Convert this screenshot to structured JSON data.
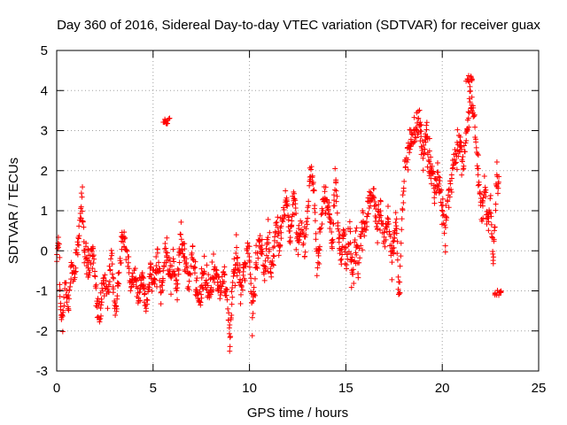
{
  "chart_data": {
    "type": "scatter",
    "title": "Day 360 of 2016, Sidereal Day-to-day VTEC variation (SDTVAR) for receiver guax",
    "xlabel": "GPS time / hours",
    "ylabel": "SDTVAR / TECUs",
    "xlim": [
      0,
      25
    ],
    "ylim": [
      -3,
      5
    ],
    "x_ticks": [
      0,
      5,
      10,
      15,
      20,
      25
    ],
    "y_ticks": [
      -3,
      -2,
      -1,
      0,
      1,
      2,
      3,
      4,
      5
    ],
    "grid": true,
    "marker": "+",
    "series_color": "#ff0000",
    "trend": [
      [
        0.0,
        -0.2
      ],
      [
        0.1,
        0.3
      ],
      [
        0.2,
        -1.2
      ],
      [
        0.3,
        -1.8
      ],
      [
        0.45,
        -0.8
      ],
      [
        0.6,
        -1.5
      ],
      [
        0.75,
        -0.4
      ],
      [
        0.9,
        -0.8
      ],
      [
        1.05,
        -0.1
      ],
      [
        1.2,
        0.6
      ],
      [
        1.3,
        1.1
      ],
      [
        1.4,
        0.5
      ],
      [
        1.5,
        -0.1
      ],
      [
        1.7,
        -0.4
      ],
      [
        1.9,
        0.1
      ],
      [
        2.05,
        -1.1
      ],
      [
        2.25,
        -1.7
      ],
      [
        2.45,
        -0.6
      ],
      [
        2.65,
        -1.2
      ],
      [
        2.85,
        -0.1
      ],
      [
        3.05,
        -1.5
      ],
      [
        3.25,
        -0.5
      ],
      [
        3.45,
        0.4
      ],
      [
        3.65,
        -0.2
      ],
      [
        3.85,
        -0.9
      ],
      [
        4.05,
        -0.5
      ],
      [
        4.25,
        -1.3
      ],
      [
        4.45,
        -0.6
      ],
      [
        4.65,
        -1.6
      ],
      [
        4.85,
        -0.4
      ],
      [
        5.05,
        -0.9
      ],
      [
        5.25,
        -0.2
      ],
      [
        5.45,
        -1.0
      ],
      [
        5.65,
        0.1
      ],
      [
        5.85,
        -0.6
      ],
      [
        6.05,
        -0.3
      ],
      [
        6.25,
        -0.9
      ],
      [
        6.45,
        0.5
      ],
      [
        6.65,
        -0.3
      ],
      [
        6.85,
        -0.8
      ],
      [
        7.05,
        -0.1
      ],
      [
        7.25,
        -0.9
      ],
      [
        7.45,
        -1.1
      ],
      [
        7.65,
        -0.6
      ],
      [
        7.85,
        -1.0
      ],
      [
        8.05,
        -0.8
      ],
      [
        8.25,
        -0.6
      ],
      [
        8.45,
        -1.0
      ],
      [
        8.65,
        -0.7
      ],
      [
        8.85,
        -1.2
      ],
      [
        9.0,
        -2.2
      ],
      [
        9.15,
        -0.5
      ],
      [
        9.35,
        -0.1
      ],
      [
        9.55,
        -1.0
      ],
      [
        9.75,
        -0.4
      ],
      [
        9.95,
        0.1
      ],
      [
        10.15,
        -1.6
      ],
      [
        10.35,
        -0.4
      ],
      [
        10.55,
        0.4
      ],
      [
        10.75,
        -0.4
      ],
      [
        10.95,
        0.1
      ],
      [
        11.15,
        -0.5
      ],
      [
        11.35,
        0.6
      ],
      [
        11.55,
        0.2
      ],
      [
        11.75,
        0.9
      ],
      [
        11.95,
        1.1
      ],
      [
        12.1,
        0.3
      ],
      [
        12.3,
        1.3
      ],
      [
        12.5,
        0.3
      ],
      [
        12.7,
        0.6
      ],
      [
        12.9,
        0.0
      ],
      [
        13.05,
        1.2
      ],
      [
        13.2,
        2.0
      ],
      [
        13.35,
        1.5
      ],
      [
        13.5,
        -0.4
      ],
      [
        13.7,
        0.7
      ],
      [
        13.9,
        1.5
      ],
      [
        14.1,
        1.2
      ],
      [
        14.3,
        0.2
      ],
      [
        14.45,
        1.8
      ],
      [
        14.6,
        0.6
      ],
      [
        14.75,
        -0.3
      ],
      [
        14.9,
        0.6
      ],
      [
        15.05,
        -0.4
      ],
      [
        15.2,
        0.4
      ],
      [
        15.35,
        -0.6
      ],
      [
        15.5,
        0.3
      ],
      [
        15.65,
        -0.5
      ],
      [
        15.8,
        0.7
      ],
      [
        16.0,
        0.6
      ],
      [
        16.2,
        1.2
      ],
      [
        16.4,
        1.6
      ],
      [
        16.6,
        0.7
      ],
      [
        16.8,
        1.2
      ],
      [
        17.0,
        0.2
      ],
      [
        17.2,
        0.8
      ],
      [
        17.4,
        -0.2
      ],
      [
        17.6,
        0.9
      ],
      [
        17.75,
        -1.3
      ],
      [
        17.9,
        0.9
      ],
      [
        18.05,
        2.0
      ],
      [
        18.2,
        2.5
      ],
      [
        18.4,
        2.7
      ],
      [
        18.6,
        2.9
      ],
      [
        18.8,
        3.1
      ],
      [
        19.0,
        2.5
      ],
      [
        19.2,
        2.8
      ],
      [
        19.4,
        2.0
      ],
      [
        19.6,
        1.6
      ],
      [
        19.8,
        1.8
      ],
      [
        20.0,
        1.2
      ],
      [
        20.15,
        0.3
      ],
      [
        20.3,
        1.3
      ],
      [
        20.5,
        1.9
      ],
      [
        20.7,
        2.4
      ],
      [
        20.9,
        2.7
      ],
      [
        21.1,
        2.2
      ],
      [
        21.3,
        3.1
      ],
      [
        21.45,
        3.9
      ],
      [
        21.6,
        3.5
      ],
      [
        21.75,
        2.7
      ],
      [
        21.9,
        1.6
      ],
      [
        22.05,
        0.9
      ],
      [
        22.2,
        1.7
      ],
      [
        22.35,
        0.7
      ],
      [
        22.5,
        1.3
      ],
      [
        22.65,
        -0.2
      ],
      [
        22.8,
        1.6
      ],
      [
        22.95,
        1.9
      ]
    ],
    "clusters": [
      {
        "x": 5.7,
        "y": 3.25,
        "note": "isolated high points"
      },
      {
        "x": 22.9,
        "y": -1.05,
        "note": "isolated low points"
      },
      {
        "x": 21.4,
        "y": 4.3,
        "note": "peak"
      }
    ]
  }
}
